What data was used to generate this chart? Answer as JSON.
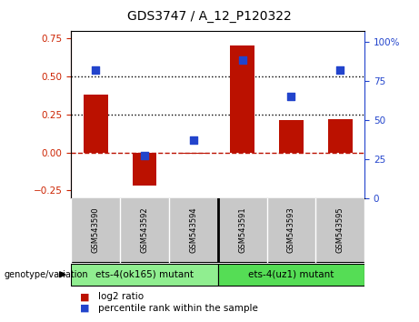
{
  "title": "GDS3747 / A_12_P120322",
  "samples": [
    "GSM543590",
    "GSM543592",
    "GSM543594",
    "GSM543591",
    "GSM543593",
    "GSM543595"
  ],
  "log2_ratio": [
    0.38,
    -0.22,
    -0.01,
    0.7,
    0.21,
    0.22
  ],
  "percentile_rank": [
    82,
    27,
    37,
    88,
    65,
    82
  ],
  "bar_color": "#bb1100",
  "dot_color": "#2244cc",
  "ylim_left": [
    -0.3,
    0.8
  ],
  "ylim_right": [
    0,
    107
  ],
  "yticks_left": [
    -0.25,
    0,
    0.25,
    0.5,
    0.75
  ],
  "yticks_right": [
    0,
    25,
    50,
    75,
    100
  ],
  "hlines": [
    0.25,
    0.5
  ],
  "zero_line_color": "#bb1100",
  "groups": [
    {
      "label": "ets-4(ok165) mutant",
      "color": "#90ee90"
    },
    {
      "label": "ets-4(uz1) mutant",
      "color": "#55dd55"
    }
  ],
  "group_label_prefix": "genotype/variation",
  "legend_items": [
    {
      "label": "log2 ratio",
      "color": "#bb1100"
    },
    {
      "label": "percentile rank within the sample",
      "color": "#2244cc"
    }
  ],
  "bar_width": 0.5,
  "background_color": "#ffffff",
  "plot_bg_color": "#ffffff",
  "tick_label_color_left": "#cc2200",
  "tick_label_color_right": "#2244cc",
  "sample_bg_color": "#c8c8c8",
  "group1_color": "#90ee90",
  "group2_color": "#55dd55"
}
